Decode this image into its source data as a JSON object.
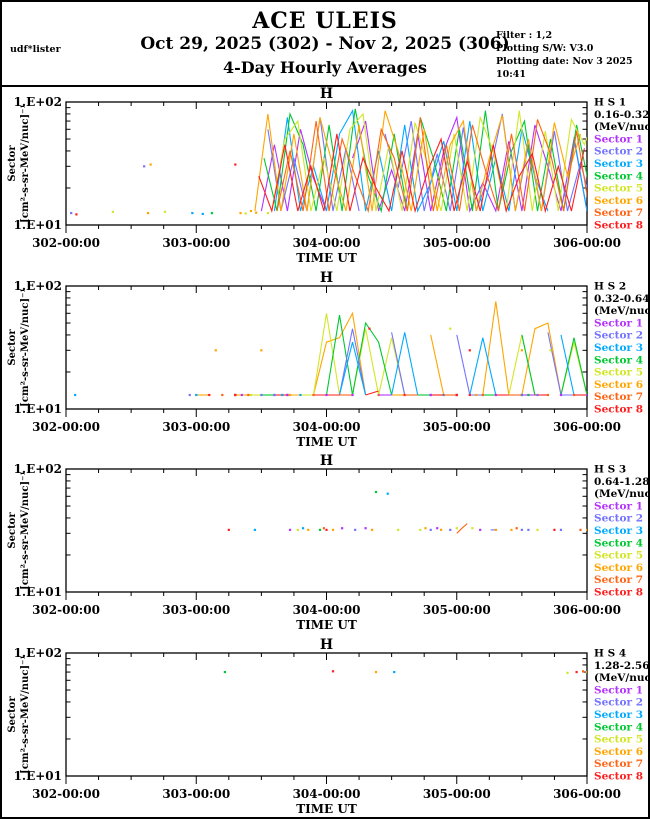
{
  "header": {
    "title": "ACE ULEIS",
    "date_range": "Oct 29, 2025 (302) - Nov  2, 2025 (306)",
    "subtitle": "4-Day Hourly Averages",
    "program": "udf*lister",
    "filter": "Filter : 1,2",
    "software": "Plotting S/W: V3.0",
    "plot_date": "Plotting date: Nov  3 2025 10:41"
  },
  "chart_data": {
    "type": "line",
    "title_per_panel": "H",
    "xlabel": "TIME UT",
    "x_range": [
      302,
      306
    ],
    "x_tick_labels": [
      "302-00:00",
      "303-00:00",
      "304-00:00",
      "305-00:00",
      "306-00:00"
    ],
    "x_minor_tick_days": 0.25,
    "y_scale": "log",
    "y_range": [
      10,
      100
    ],
    "y_tick_labels": [
      "1.E+02",
      "1.E+01"
    ],
    "ylabel_line1": "Sector",
    "ylabel_line2": "[cm²-s-sr-MeV/nuc]⁻¹",
    "grid": false,
    "legend_position": "right",
    "sector_labels": [
      "Sector 1",
      "Sector 2",
      "Sector 3",
      "Sector 4",
      "Sector 5",
      "Sector 6",
      "Sector 7",
      "Sector 8"
    ],
    "sector_colors": [
      "#b433ff",
      "#7373ff",
      "#00aaff",
      "#00c832",
      "#d2e628",
      "#ffa500",
      "#ff6414",
      "#ff1e1e"
    ],
    "panels": [
      {
        "title": "H",
        "legend_id": "H S 1",
        "energy": "0.16-0.32",
        "unit": "(MeV/nuc)",
        "series": [
          {
            "sector": 1,
            "start": 303.5,
            "step": 0.1,
            "y": [
              13,
              45,
              13,
              60,
              24,
              13,
              null,
              35,
              70,
              13,
              28,
              13,
              55,
              13,
              40,
              75,
              13,
              22,
              13,
              48,
              13,
              65,
              30,
              13,
              50,
              13
            ]
          },
          {
            "sector": 2,
            "start": 303.55,
            "step": 0.1,
            "y": [
              60,
              13,
              35,
              13,
              75,
              13,
              42,
              13,
              null,
              55,
              20,
              70,
              13,
              38,
              13,
              62,
              13,
              26,
              80,
              13,
              45,
              13,
              58,
              13,
              32,
              13
            ]
          },
          {
            "sector": 3,
            "start": 303.6,
            "step": 0.1,
            "y": [
              13,
              75,
              13,
              30,
              13,
              55,
              85,
              13,
              40,
              13,
              65,
              13,
              22,
              48,
              13,
              70,
              13,
              35,
              13,
              60,
              25,
              13,
              null,
              52,
              13,
              42
            ]
          },
          {
            "sector": 4,
            "start": 303.52,
            "step": 0.1,
            "y": [
              35,
              13,
              80,
              45,
              13,
              65,
              13,
              88,
              25,
              13,
              55,
              13,
              75,
              35,
              13,
              60,
              13,
              85,
              13,
              40,
              70,
              13,
              50,
              13,
              65,
              20
            ]
          },
          {
            "sector": 5,
            "start": 303.58,
            "step": 0.1,
            "y": [
              13,
              50,
              70,
              13,
              35,
              13,
              60,
              80,
              13,
              45,
              13,
              68,
              30,
              13,
              55,
              13,
              75,
              40,
              13,
              85,
              13,
              58,
              13,
              72,
              45,
              85
            ]
          },
          {
            "sector": 6,
            "start": 303.45,
            "step": 0.1,
            "y": [
              13,
              80,
              13,
              55,
              13,
              75,
              30,
              13,
              65,
              13,
              85,
              40,
              13,
              60,
              13,
              45,
              70,
              13,
              35,
              78,
              13,
              50,
              13,
              68,
              25,
              55
            ]
          },
          {
            "sector": 7,
            "start": 303.62,
            "step": 0.1,
            "y": [
              13,
              40,
              13,
              70,
              13,
              50,
              25,
              13,
              60,
              35,
              13,
              75,
              13,
              45,
              13,
              65,
              28,
              13,
              55,
              13,
              72,
              38,
              13,
              58,
              13,
              48
            ]
          },
          {
            "sector": 8,
            "start": 303.48,
            "step": 0.1,
            "y": [
              25,
              13,
              45,
              13,
              30,
              13,
              55,
              13,
              35,
              20,
              13,
              40,
              13,
              28,
              50,
              13,
              33,
              13,
              45,
              13,
              25,
              38,
              13,
              30,
              13,
              42
            ]
          }
        ],
        "dots": [
          [
            302.04,
            12.5,
            2
          ],
          [
            302.08,
            12.2,
            8
          ],
          [
            302.36,
            12.8,
            5
          ],
          [
            302.6,
            30,
            2
          ],
          [
            302.65,
            31,
            6
          ],
          [
            302.63,
            12.5,
            6
          ],
          [
            302.76,
            12.8,
            5
          ],
          [
            302.97,
            12.5,
            3
          ],
          [
            303.05,
            12.3,
            3
          ],
          [
            303.12,
            12.5,
            4
          ],
          [
            303.3,
            31,
            8
          ],
          [
            303.34,
            12.5,
            6
          ],
          [
            303.38,
            12.4,
            5
          ],
          [
            303.42,
            13,
            6
          ],
          [
            303.46,
            12.6,
            6
          ],
          [
            303.55,
            12.5,
            5
          ]
        ]
      },
      {
        "title": "H",
        "legend_id": "H S 2",
        "energy": "0.32-0.64",
        "unit": "(MeV/nuc)",
        "series": [
          {
            "sector": 6,
            "start": 303.0,
            "step": 0.1,
            "y": [
              13,
              13,
              null,
              13,
              13,
              null,
              13,
              13,
              13,
              13,
              35,
              38,
              60,
              13,
              null,
              13,
              13,
              null,
              40,
              13,
              13,
              null,
              13,
              75,
              13,
              13,
              45,
              50,
              13,
              13,
              13
            ]
          },
          {
            "sector": 5,
            "start": 303.0,
            "step": 0.1,
            "y": [
              null,
              null,
              null,
              null,
              13,
              13,
              null,
              null,
              13,
              13,
              60,
              13,
              13,
              45,
              13,
              38,
              13,
              null,
              13,
              13,
              null,
              13,
              13,
              null,
              13,
              40,
              13,
              null,
              13,
              35,
              13
            ]
          },
          {
            "sector": 4,
            "start": 303.0,
            "step": 0.1,
            "y": [
              null,
              null,
              null,
              13,
              null,
              13,
              13,
              null,
              null,
              13,
              13,
              58,
              13,
              50,
              35,
              13,
              null,
              13,
              13,
              null,
              13,
              null,
              13,
              13,
              null,
              40,
              13,
              null,
              13,
              38,
              13
            ]
          },
          {
            "sector": 2,
            "start": 303.0,
            "step": 0.1,
            "y": [
              null,
              null,
              null,
              null,
              null,
              13,
              null,
              13,
              null,
              null,
              13,
              13,
              45,
              13,
              null,
              42,
              13,
              null,
              13,
              null,
              40,
              13,
              13,
              null,
              null,
              13,
              null,
              42,
              13,
              13,
              null
            ]
          },
          {
            "sector": 3,
            "start": 303.0,
            "step": 0.1,
            "y": [
              13,
              null,
              null,
              null,
              null,
              null,
              13,
              null,
              13,
              null,
              null,
              13,
              35,
              13,
              null,
              13,
              42,
              13,
              null,
              13,
              null,
              13,
              38,
              13,
              null,
              13,
              null,
              null,
              40,
              13,
              13
            ]
          },
          {
            "sector": 8,
            "start": 303.0,
            "step": 0.1,
            "y": [
              null,
              13,
              null,
              13,
              null,
              null,
              13,
              13,
              null,
              13,
              13,
              13,
              null,
              13,
              14,
              null,
              13,
              null,
              13,
              13,
              null,
              13,
              null,
              13,
              13,
              null,
              13,
              13,
              null,
              13,
              13
            ]
          },
          {
            "sector": 7,
            "start": 303.0,
            "step": 0.1,
            "y": [
              null,
              null,
              13,
              null,
              13,
              null,
              null,
              13,
              null,
              13,
              null,
              13,
              13,
              null,
              13,
              null,
              13,
              13,
              null,
              13,
              13,
              null,
              13,
              null,
              13,
              13,
              null,
              13,
              null,
              13,
              null
            ]
          },
          {
            "sector": 1,
            "start": 303.0,
            "step": 0.1,
            "y": [
              null,
              null,
              null,
              null,
              null,
              null,
              null,
              13,
              null,
              null,
              13,
              null,
              13,
              null,
              13,
              13,
              null,
              null,
              13,
              null,
              13,
              null,
              null,
              13,
              null,
              13,
              13,
              null,
              13,
              null,
              13
            ]
          }
        ],
        "dots": [
          [
            302.07,
            13,
            3
          ],
          [
            302.95,
            13,
            2
          ],
          [
            303.15,
            30,
            6
          ],
          [
            303.5,
            30,
            6
          ],
          [
            304.33,
            45,
            8
          ],
          [
            304.95,
            45,
            5
          ],
          [
            305.1,
            30,
            8
          ],
          [
            305.5,
            30,
            6
          ],
          [
            305.72,
            30,
            5
          ],
          [
            303.3,
            13,
            8
          ],
          [
            303.35,
            13,
            1
          ],
          [
            303.42,
            13,
            5
          ],
          [
            303.6,
            13,
            2
          ],
          [
            303.66,
            13,
            3
          ],
          [
            303.72,
            13,
            6
          ],
          [
            305.0,
            13,
            8
          ],
          [
            305.15,
            13,
            6
          ],
          [
            305.55,
            13,
            4
          ],
          [
            305.62,
            13,
            2
          ]
        ]
      },
      {
        "title": "H",
        "legend_id": "H S 3",
        "energy": "0.64-1.28",
        "unit": "(MeV/nuc)",
        "series": [
          {
            "sector": 7,
            "start": 305.0,
            "step": 0.04,
            "y": [
              30,
              33,
              36
            ]
          },
          {
            "sector": 2,
            "start": 305.26,
            "step": 0.05,
            "y": [
              32,
              32
            ]
          }
        ],
        "dots": [
          [
            303.25,
            32,
            8
          ],
          [
            303.45,
            32,
            3
          ],
          [
            303.72,
            32,
            1
          ],
          [
            303.78,
            32,
            5
          ],
          [
            303.82,
            33,
            3
          ],
          [
            303.86,
            32,
            6
          ],
          [
            303.95,
            32,
            4
          ],
          [
            303.98,
            33,
            7
          ],
          [
            304.0,
            32,
            8
          ],
          [
            304.05,
            32,
            6
          ],
          [
            304.12,
            33,
            1
          ],
          [
            304.22,
            32,
            2
          ],
          [
            304.3,
            33,
            1
          ],
          [
            304.35,
            32,
            6
          ],
          [
            304.38,
            65,
            4
          ],
          [
            304.47,
            63,
            3
          ],
          [
            304.55,
            32,
            5
          ],
          [
            304.72,
            32,
            5
          ],
          [
            304.76,
            33,
            6
          ],
          [
            304.8,
            32,
            2
          ],
          [
            304.85,
            33,
            1
          ],
          [
            304.88,
            32,
            6
          ],
          [
            304.95,
            32,
            2
          ],
          [
            305.0,
            33,
            5
          ],
          [
            305.12,
            33,
            5
          ],
          [
            305.18,
            32,
            1
          ],
          [
            305.3,
            32,
            6
          ],
          [
            305.42,
            32,
            6
          ],
          [
            305.46,
            33,
            7
          ],
          [
            305.5,
            32,
            2
          ],
          [
            305.55,
            32,
            2
          ],
          [
            305.62,
            32,
            5
          ],
          [
            305.75,
            32,
            8
          ],
          [
            305.8,
            32,
            2
          ],
          [
            305.95,
            32,
            7
          ],
          [
            306.0,
            32,
            6
          ]
        ]
      },
      {
        "title": "H",
        "legend_id": "H S 4",
        "energy": "1.28-2.56",
        "unit": "(MeV/nuc)",
        "series": [],
        "dots": [
          [
            303.22,
            70,
            4
          ],
          [
            304.05,
            71,
            8
          ],
          [
            304.38,
            70,
            6
          ],
          [
            304.52,
            70,
            3
          ],
          [
            305.85,
            69,
            5
          ],
          [
            305.92,
            70,
            8
          ],
          [
            305.97,
            71,
            7
          ],
          [
            306.0,
            70,
            6
          ]
        ]
      }
    ]
  }
}
